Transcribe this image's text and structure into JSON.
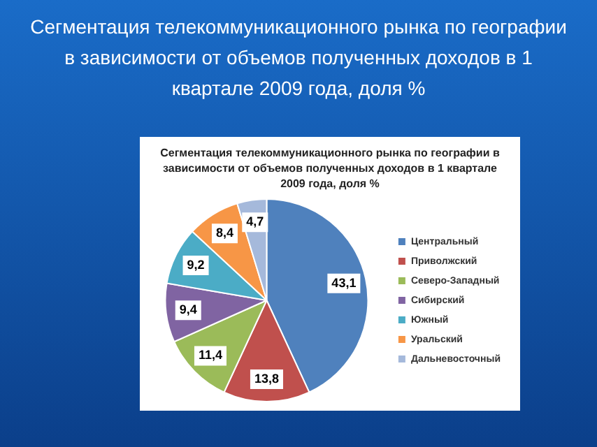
{
  "chart_data": {
    "type": "pie",
    "title": "Сегментация телекоммуникационного рынка по географии    в зависимости от объемов полученных доходов в 1 квартале 2009 года, доля %",
    "subtitle": "Сегментация телекоммуникационного рынка по географии  в зависимости от объемов полученных доходов в 1 квартале 2009 года, доля %",
    "categories": [
      "Центральный",
      "Приволжский",
      "Северо-Западный",
      "Сибирский",
      "Южный",
      "Уральский",
      "Дальневосточный"
    ],
    "values": [
      43.1,
      13.8,
      11.4,
      9.4,
      9.2,
      8.4,
      4.7
    ],
    "value_labels": [
      "43,1",
      "13,8",
      "11,4",
      "9,4",
      "9,2",
      "8,4",
      "4,7"
    ],
    "colors": [
      "#4f81bd",
      "#c0504d",
      "#9bbb59",
      "#8064a2",
      "#4bacc6",
      "#f79646",
      "#a5b9db"
    ],
    "legend": "right"
  }
}
